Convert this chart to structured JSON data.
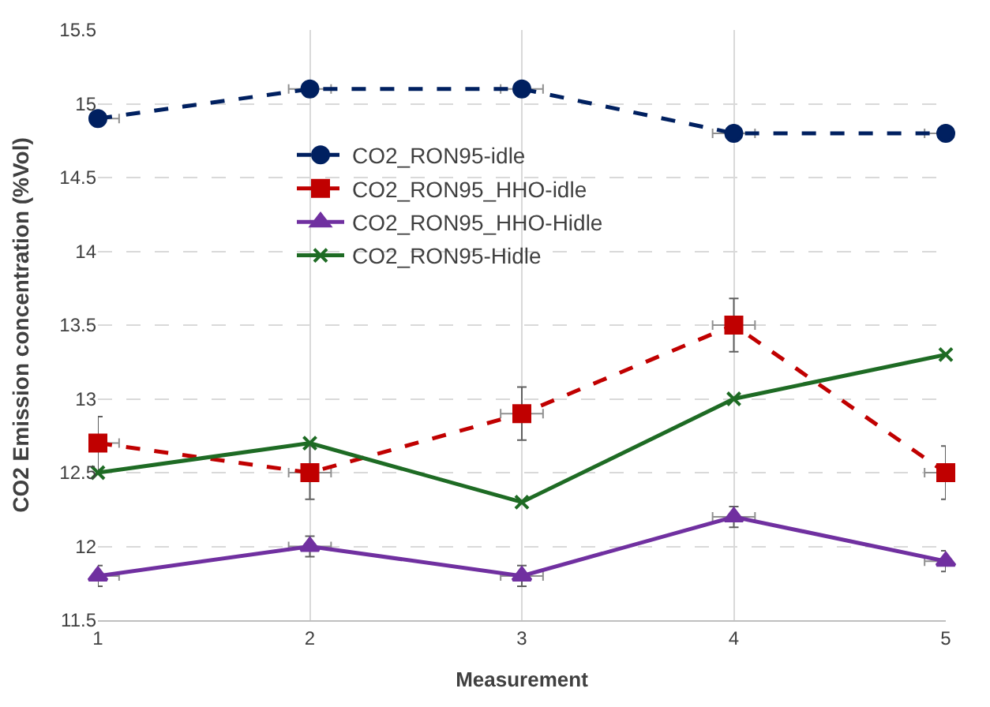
{
  "chart_data": {
    "type": "line",
    "xlabel": "Measurement",
    "ylabel": "CO2 Emission concentration (%Vol)",
    "x": [
      1,
      2,
      3,
      4,
      5
    ],
    "xlim": [
      1,
      5
    ],
    "xticks": [
      1,
      2,
      3,
      4,
      5
    ],
    "ylim": [
      11.5,
      15.5
    ],
    "yticks": [
      11.5,
      12,
      12.5,
      13,
      13.5,
      14,
      14.5,
      15,
      15.5
    ],
    "grid": true,
    "legend": "top",
    "series": [
      {
        "name": "CO2_RON95-idle",
        "color": "#002060",
        "values": [
          14.9,
          15.1,
          15.1,
          14.8,
          14.8
        ],
        "marker": "circle",
        "line_style": "dashed",
        "errors": [
          0.05,
          0.05,
          0.05,
          0.05,
          0.05
        ],
        "xerrors": [
          0.1,
          0.1,
          0.1,
          0.1,
          0.1
        ]
      },
      {
        "name": "CO2_RON95_HHO-idle",
        "color": "#c00000",
        "values": [
          12.7,
          12.5,
          12.9,
          13.5,
          12.5
        ],
        "marker": "square",
        "line_style": "dashed",
        "errors": [
          0.18,
          0.18,
          0.18,
          0.18,
          0.18
        ],
        "xerrors": [
          0.1,
          0.1,
          0.1,
          0.1,
          0.1
        ]
      },
      {
        "name": "CO2_RON95_HHO-Hidle",
        "color": "#7030a0",
        "values": [
          11.8,
          12.0,
          11.8,
          12.2,
          11.9
        ],
        "marker": "triangle",
        "line_style": "solid",
        "errors": [
          0.07,
          0.07,
          0.07,
          0.07,
          0.07
        ],
        "xerrors": [
          0.1,
          0.1,
          0.1,
          0.1,
          0.1
        ]
      },
      {
        "name": "CO2_RON95-Hidle",
        "color": "#1e6b24",
        "values": [
          12.5,
          12.7,
          12.3,
          13.0,
          13.3
        ],
        "marker": "cross",
        "line_style": "solid"
      }
    ]
  }
}
